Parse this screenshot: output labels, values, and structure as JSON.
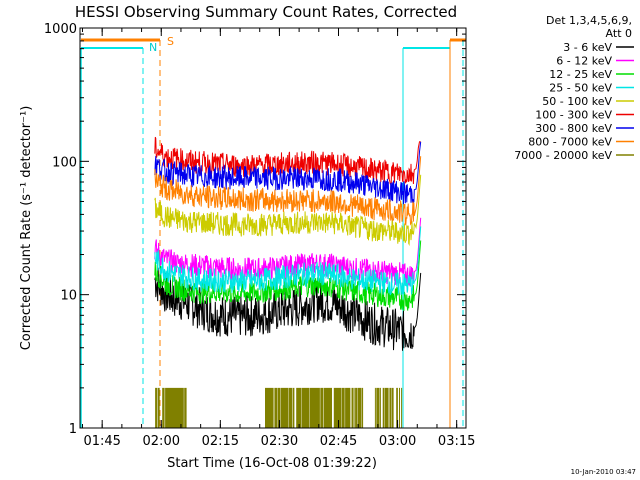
{
  "chart_data": {
    "type": "line",
    "title": "HESSI Observing Summary Count Rates, Corrected",
    "xlabel": "Start Time (16-Oct-08 01:39:22)",
    "ylabel": "Corrected Count Rate (s⁻¹ detector⁻¹)",
    "y_scale": "log",
    "ylim": [
      1,
      1000
    ],
    "xlim_minutes": [
      0,
      98
    ],
    "x_ticks": [
      {
        "label": "01:45",
        "minute": 5.63
      },
      {
        "label": "02:00",
        "minute": 20.63
      },
      {
        "label": "02:15",
        "minute": 35.63
      },
      {
        "label": "02:30",
        "minute": 50.63
      },
      {
        "label": "02:45",
        "minute": 65.63
      },
      {
        "label": "03:00",
        "minute": 80.63
      },
      {
        "label": "03:15",
        "minute": 95.63
      }
    ],
    "y_ticks": [
      {
        "label": "1",
        "value": 1
      },
      {
        "label": "10",
        "value": 10
      },
      {
        "label": "100",
        "value": 100
      },
      {
        "label": "1000",
        "value": 1000
      }
    ],
    "legend_header": [
      "Det 1,3,4,5,6,9,",
      "Att 0"
    ],
    "series": [
      {
        "name": "3 - 6 keV",
        "color": "#000000",
        "x": [
          19,
          22,
          26,
          30,
          35,
          40,
          45,
          50,
          55,
          60,
          65,
          70,
          75,
          80,
          83,
          84,
          85
        ],
        "y": [
          13,
          10,
          9,
          8,
          7,
          6.8,
          7,
          7.5,
          8,
          9,
          8.5,
          7,
          6,
          5.5,
          5.2,
          5.3,
          5.6
        ]
      },
      {
        "name": "6 - 12 keV",
        "color": "#ff00ff",
        "x": [
          19,
          22,
          26,
          30,
          35,
          40,
          45,
          50,
          55,
          60,
          65,
          70,
          75,
          80,
          83,
          84,
          85
        ],
        "y": [
          22,
          18,
          17,
          16.5,
          16,
          15.5,
          15.5,
          16,
          16.5,
          17,
          16.5,
          15.5,
          15,
          14.5,
          14,
          14,
          14.5
        ]
      },
      {
        "name": "12 - 25 keV",
        "color": "#00dd00",
        "x": [
          19,
          22,
          26,
          30,
          35,
          40,
          45,
          50,
          55,
          60,
          65,
          70,
          75,
          80,
          83,
          84,
          85
        ],
        "y": [
          15,
          12,
          11,
          10.5,
          10.5,
          10.3,
          10.5,
          11,
          11.5,
          12,
          11.5,
          10.5,
          10,
          9.5,
          9.2,
          9.3,
          9.8
        ]
      },
      {
        "name": "25 - 50 keV",
        "color": "#00e6e6",
        "x": [
          19,
          22,
          26,
          30,
          35,
          40,
          45,
          50,
          55,
          60,
          65,
          70,
          75,
          80,
          83,
          84,
          85
        ],
        "y": [
          19,
          15,
          14,
          13,
          12.8,
          12.6,
          12.8,
          13.3,
          14,
          14.5,
          14,
          13,
          12.5,
          12,
          11.8,
          12,
          12.5
        ]
      },
      {
        "name": "50 - 100 keV",
        "color": "#cccc00",
        "x": [
          19,
          22,
          26,
          30,
          35,
          40,
          45,
          50,
          55,
          60,
          65,
          70,
          75,
          80,
          83,
          84,
          85
        ],
        "y": [
          44,
          38,
          36,
          35,
          34,
          33.5,
          33.5,
          34,
          34.5,
          35,
          34.5,
          32,
          30.5,
          29.5,
          29,
          29.5,
          30.5
        ]
      },
      {
        "name": "100 - 300 keV",
        "color": "#ee0000",
        "x": [
          19,
          22,
          26,
          30,
          35,
          40,
          45,
          50,
          55,
          60,
          65,
          70,
          75,
          80,
          83,
          84,
          85
        ],
        "y": [
          125,
          108,
          102,
          98,
          95,
          93,
          93,
          95,
          97,
          98,
          95,
          90,
          85,
          82,
          80,
          81,
          84
        ]
      },
      {
        "name": "300 - 800 keV",
        "color": "#0000ee",
        "x": [
          19,
          22,
          26,
          30,
          35,
          40,
          45,
          50,
          55,
          60,
          65,
          70,
          75,
          80,
          83,
          84,
          85
        ],
        "y": [
          95,
          83,
          80,
          77,
          76,
          75,
          75,
          74.5,
          74.5,
          74,
          73,
          69,
          64,
          60,
          57,
          57.5,
          59
        ]
      },
      {
        "name": "800 - 7000 keV",
        "color": "#ff8000",
        "x": [
          19,
          22,
          26,
          30,
          35,
          40,
          45,
          50,
          55,
          60,
          65,
          70,
          75,
          80,
          83,
          84,
          85
        ],
        "y": [
          72,
          62,
          58,
          55,
          53,
          52,
          51.5,
          51,
          51,
          50.5,
          49.5,
          46.5,
          44,
          42,
          40.5,
          41,
          42
        ]
      },
      {
        "name": "7000 - 20000 keV",
        "color": "#808000",
        "x": [
          19,
          25,
          30,
          40,
          45,
          50,
          55,
          60,
          65,
          70,
          75,
          80
        ],
        "y": [
          1,
          1,
          1,
          1,
          1,
          1,
          1,
          1,
          1,
          1,
          1,
          1
        ]
      }
    ],
    "annotations": [
      {
        "text": "S",
        "color": "#ff8000"
      },
      {
        "text": "N",
        "color": "#00cccc"
      }
    ]
  },
  "timestamp": "10-Jan-2010 03:47",
  "colors": {
    "night_color": "#00e6e6",
    "saa_color": "#ff8000"
  }
}
